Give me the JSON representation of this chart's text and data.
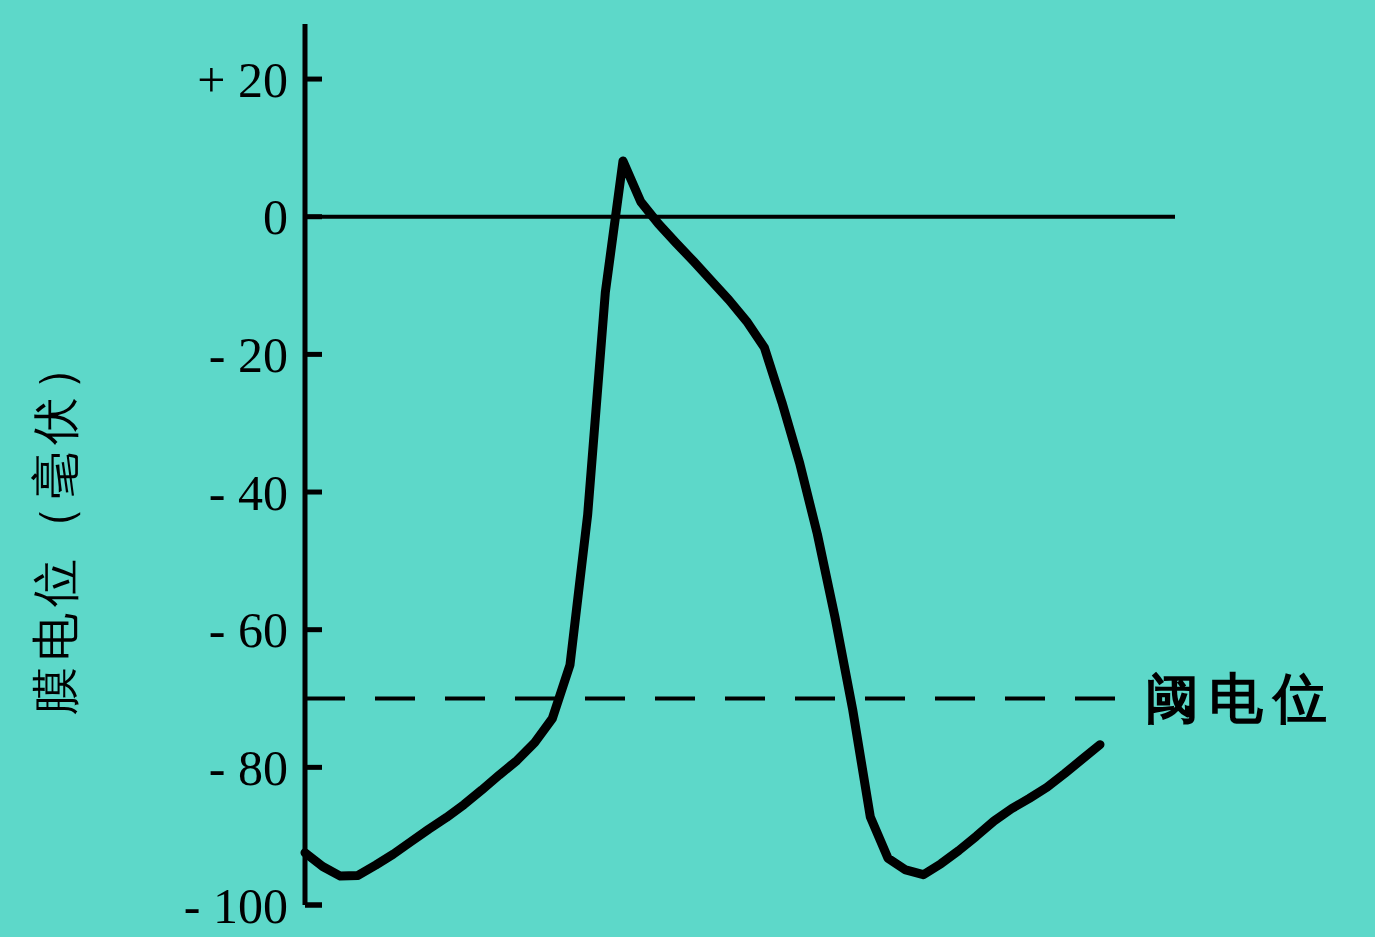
{
  "chart_data": {
    "type": "line",
    "ylabel": "膜电位（毫伏）",
    "categories": [
      null,
      null,
      null,
      null,
      null,
      null,
      null,
      null,
      null,
      null,
      null,
      null,
      null,
      null,
      null,
      null,
      null,
      null,
      null,
      null,
      null,
      null,
      null,
      null,
      null,
      null,
      null,
      null,
      null,
      null,
      null,
      null,
      null,
      null,
      null,
      null,
      null,
      null,
      null,
      null,
      null,
      null,
      null,
      null,
      null,
      null
    ],
    "series": [
      {
        "color": "#000000",
        "values": [
          -92.4,
          -94.4,
          -95.8,
          -95.7,
          -94.2,
          -92.6,
          -90.8,
          -89,
          -87.3,
          -85.4,
          -83.3,
          -81.1,
          -79,
          -76.4,
          -72.9,
          -65.1,
          -43.3,
          -11,
          8.1,
          2.2,
          -1,
          -3.8,
          -6.5,
          -9.3,
          -12.1,
          -15.2,
          -19,
          -27,
          -35.8,
          -46.1,
          -58.2,
          -71.6,
          -87.2,
          -93.2,
          -94.9,
          -95.6,
          -94,
          -92.1,
          -90,
          -87.8,
          -86,
          -84.5,
          -82.9,
          -80.9,
          -78.8,
          -76.7
        ]
      }
    ],
    "ylim": [
      -100,
      28
    ],
    "yticks": [
      {
        "value": 20,
        "label": "+ 20"
      },
      0,
      {
        "value": -20,
        "label": "- 20"
      },
      {
        "value": -40,
        "label": "- 40"
      },
      {
        "value": -60,
        "label": "- 60"
      },
      {
        "value": -80,
        "label": "- 80"
      },
      {
        "value": -100,
        "label": "- 100"
      }
    ],
    "tick_labels": "y",
    "grid": false,
    "marker": "none",
    "line_style": "solid",
    "ref_lines": [
      {
        "axis": "y",
        "value": 0,
        "line_style": "solid",
        "color": "#000000"
      },
      {
        "axis": "y",
        "value": -70,
        "label": "阈电位",
        "line_style": "dashed",
        "color": "#000000"
      }
    ]
  }
}
